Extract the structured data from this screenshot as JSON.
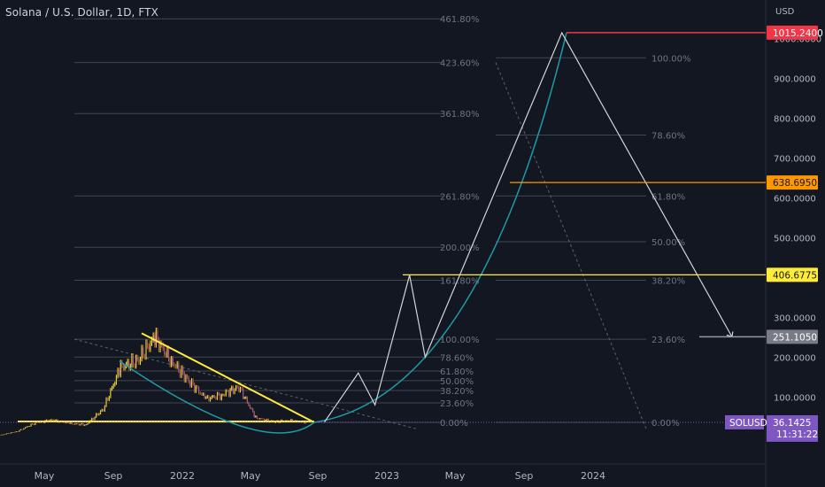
{
  "header": {
    "title": "Solana / U.S. Dollar, 1D, FTX"
  },
  "price_axis": {
    "currency": "USD",
    "ticks": [
      {
        "label": "100.0000",
        "value": 100
      },
      {
        "label": "200.0000",
        "value": 200
      },
      {
        "label": "300.0000",
        "value": 300
      },
      {
        "label": "500.0000",
        "value": 500
      },
      {
        "label": "600.0000",
        "value": 600
      },
      {
        "label": "700.0000",
        "value": 700
      },
      {
        "label": "800.0000",
        "value": 800
      },
      {
        "label": "900.0000",
        "value": 900
      },
      {
        "label": "1000.0000",
        "value": 1000
      }
    ],
    "tags": [
      {
        "name": "price-tag-1015",
        "label": "1015.2400",
        "value": 1015.24,
        "bg": "#f23645",
        "fg": "#ffffff"
      },
      {
        "name": "price-tag-638",
        "label": "638.6950",
        "value": 638.695,
        "bg": "#ff9800",
        "fg": "#131722"
      },
      {
        "name": "price-tag-406",
        "label": "406.6775",
        "value": 406.6775,
        "bg": "#ffeb3b",
        "fg": "#131722"
      },
      {
        "name": "price-tag-251",
        "label": "251.1050",
        "value": 251.105,
        "bg": "#787b86",
        "fg": "#ffffff"
      }
    ],
    "last_price": {
      "symbol": "SOLUSD",
      "price": "36.1425",
      "countdown": "11:31:22",
      "value": 36.1425,
      "bg": "#7e57c2"
    }
  },
  "chart_data": {
    "type": "line",
    "title": "Solana / U.S. Dollar, 1D, FTX",
    "symbol": "SOLUSD",
    "y_unit": "USD",
    "ylim": [
      -110,
      1100
    ],
    "x_ticks": [
      "May",
      "Sep",
      "2022",
      "May",
      "Sep",
      "2023",
      "May",
      "Sep",
      "2024"
    ],
    "grid": false,
    "series": [
      {
        "name": "SOLUSD",
        "values_hint": "daily candles, approx close",
        "points": [
          [
            "2021-01",
            2
          ],
          [
            "2021-02",
            5
          ],
          [
            "2021-03",
            14
          ],
          [
            "2021-04",
            35
          ],
          [
            "2021-05",
            42
          ],
          [
            "2021-06",
            33
          ],
          [
            "2021-07",
            30
          ],
          [
            "2021-08",
            70
          ],
          [
            "2021-09",
            175
          ],
          [
            "2021-10",
            190
          ],
          [
            "2021-11",
            250
          ],
          [
            "2021-12",
            190
          ],
          [
            "2022-01",
            140
          ],
          [
            "2022-02",
            95
          ],
          [
            "2022-03",
            105
          ],
          [
            "2022-04",
            125
          ],
          [
            "2022-05",
            48
          ],
          [
            "2022-06",
            37
          ],
          [
            "2022-07",
            40
          ],
          [
            "2022-08",
            36
          ]
        ]
      }
    ],
    "fib_extension_left": [
      {
        "label": "0.00%",
        "value": 36
      },
      {
        "label": "23.60%",
        "value": 85
      },
      {
        "label": "38.20%",
        "value": 116
      },
      {
        "label": "50.00%",
        "value": 141
      },
      {
        "label": "61.80%",
        "value": 165
      },
      {
        "label": "78.60%",
        "value": 200
      },
      {
        "label": "100.00%",
        "value": 245
      },
      {
        "label": "161.80%",
        "value": 393
      },
      {
        "label": "200.00%",
        "value": 476
      },
      {
        "label": "261.80%",
        "value": 605
      },
      {
        "label": "361.80%",
        "value": 812
      },
      {
        "label": "423.60%",
        "value": 940
      },
      {
        "label": "461.80%",
        "value": 1050
      }
    ],
    "fib_retracement_right": [
      {
        "label": "0.00%",
        "value": 36
      },
      {
        "label": "23.60%",
        "value": 245
      },
      {
        "label": "38.20%",
        "value": 393
      },
      {
        "label": "50.00%",
        "value": 490
      },
      {
        "label": "61.80%",
        "value": 605
      },
      {
        "label": "78.60%",
        "value": 758
      },
      {
        "label": "100.00%",
        "value": 952
      }
    ],
    "projection_path": [
      [
        "2022-09",
        36
      ],
      [
        "2022-11",
        160
      ],
      [
        "2022-12",
        80
      ],
      [
        "2023-02",
        406
      ],
      [
        "2023-03",
        200
      ],
      [
        "2023-11",
        1015
      ],
      [
        "2024-09",
        251
      ]
    ],
    "annotations": [
      "descending trendline (yellow) from 2021-11 high to 2022-08",
      "horizontal support (yellow) at 36",
      "parabolic curve (teal)"
    ]
  }
}
